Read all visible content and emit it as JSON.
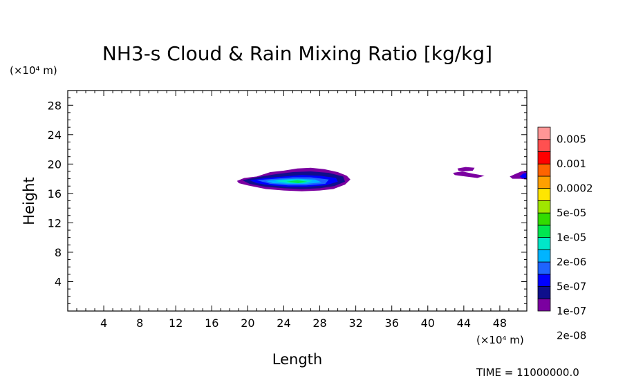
{
  "chart_data": {
    "type": "heatmap",
    "title": "NH3-s Cloud & Rain Mixing Ratio [kg/kg]",
    "xlabel": "Length",
    "ylabel": "Height",
    "x_unit": "(×10⁴ m)",
    "y_unit": "(×10⁴ m)",
    "xlim": [
      0,
      51
    ],
    "ylim": [
      0,
      30
    ],
    "x_ticks": [
      4,
      8,
      12,
      16,
      20,
      24,
      28,
      32,
      36,
      40,
      44,
      48
    ],
    "y_ticks": [
      4,
      8,
      12,
      16,
      20,
      24,
      28
    ],
    "grid": false,
    "legend_position": "right",
    "colorbar": {
      "labels": [
        "0.005",
        "0.001",
        "0.0002",
        "5e-05",
        "1e-05",
        "2e-06",
        "5e-07",
        "1e-07",
        "2e-08"
      ],
      "colors": [
        "#7b00a0",
        "#0f0f8c",
        "#0000ff",
        "#1e64ff",
        "#00b4ff",
        "#00e6c8",
        "#00e650",
        "#32dc00",
        "#a0e600",
        "#ffe600",
        "#ffa000",
        "#ff6400",
        "#ff0000",
        "#ff5050",
        "#ff9696"
      ]
    },
    "contour_regions": [
      {
        "level": 0,
        "points": [
          [
            18.8,
            17.7
          ],
          [
            19.6,
            18.1
          ],
          [
            21.0,
            18.3
          ],
          [
            22.5,
            18.9
          ],
          [
            24.0,
            19.1
          ],
          [
            25.5,
            19.4
          ],
          [
            27.0,
            19.5
          ],
          [
            28.5,
            19.3
          ],
          [
            30.0,
            18.9
          ],
          [
            31.0,
            18.4
          ],
          [
            31.4,
            17.9
          ],
          [
            30.8,
            17.2
          ],
          [
            29.5,
            16.6
          ],
          [
            28.0,
            16.4
          ],
          [
            26.0,
            16.3
          ],
          [
            24.0,
            16.4
          ],
          [
            22.0,
            16.6
          ],
          [
            20.0,
            17.1
          ],
          [
            19.0,
            17.4
          ]
        ]
      },
      {
        "level": 1,
        "points": [
          [
            19.4,
            17.8
          ],
          [
            21.0,
            18.2
          ],
          [
            23.0,
            18.6
          ],
          [
            25.0,
            18.9
          ],
          [
            27.0,
            19.0
          ],
          [
            29.0,
            18.8
          ],
          [
            30.6,
            18.3
          ],
          [
            30.8,
            17.6
          ],
          [
            29.6,
            17.0
          ],
          [
            28.0,
            16.7
          ],
          [
            26.0,
            16.6
          ],
          [
            24.0,
            16.7
          ],
          [
            22.0,
            16.9
          ],
          [
            20.2,
            17.3
          ]
        ]
      },
      {
        "level": 2,
        "points": [
          [
            20.2,
            17.8
          ],
          [
            22.0,
            18.1
          ],
          [
            24.0,
            18.3
          ],
          [
            26.0,
            18.5
          ],
          [
            28.0,
            18.4
          ],
          [
            29.8,
            18.1
          ],
          [
            30.0,
            17.6
          ],
          [
            28.6,
            17.1
          ],
          [
            26.5,
            16.9
          ],
          [
            24.5,
            16.9
          ],
          [
            22.5,
            17.1
          ],
          [
            21.0,
            17.4
          ]
        ]
      },
      {
        "level": 3,
        "points": [
          [
            21.0,
            17.8
          ],
          [
            23.0,
            18.0
          ],
          [
            25.0,
            18.2
          ],
          [
            27.0,
            18.2
          ],
          [
            29.0,
            17.9
          ],
          [
            28.6,
            17.3
          ],
          [
            26.5,
            17.1
          ],
          [
            24.5,
            17.1
          ],
          [
            22.5,
            17.3
          ]
        ]
      },
      {
        "level": 4,
        "points": [
          [
            22.0,
            17.7
          ],
          [
            23.5,
            17.9
          ],
          [
            25.5,
            18.0
          ],
          [
            27.5,
            17.9
          ],
          [
            28.2,
            17.5
          ],
          [
            26.5,
            17.3
          ],
          [
            24.5,
            17.3
          ],
          [
            22.8,
            17.4
          ]
        ]
      },
      {
        "level": 5,
        "points": [
          [
            23.0,
            17.7
          ],
          [
            24.5,
            17.9
          ],
          [
            26.0,
            17.9
          ],
          [
            27.2,
            17.7
          ],
          [
            26.2,
            17.4
          ],
          [
            24.5,
            17.4
          ]
        ]
      },
      {
        "level": 6,
        "points": [
          [
            24.3,
            17.6
          ],
          [
            25.5,
            17.8
          ],
          [
            26.6,
            17.6
          ],
          [
            25.6,
            17.4
          ]
        ]
      },
      {
        "level": 0,
        "points": [
          [
            43.3,
            19.4
          ],
          [
            44.2,
            19.6
          ],
          [
            45.2,
            19.5
          ],
          [
            45.0,
            19.1
          ],
          [
            44.0,
            19.0
          ],
          [
            43.4,
            19.1
          ]
        ]
      },
      {
        "level": 0,
        "points": [
          [
            42.8,
            18.8
          ],
          [
            43.8,
            19.0
          ],
          [
            45.0,
            18.7
          ],
          [
            46.3,
            18.4
          ],
          [
            45.5,
            18.1
          ],
          [
            44.2,
            18.3
          ],
          [
            43.0,
            18.5
          ]
        ]
      },
      {
        "level": 0,
        "points": [
          [
            49.1,
            18.3
          ],
          [
            49.8,
            18.7
          ],
          [
            50.4,
            19.0
          ],
          [
            51.0,
            19.1
          ],
          [
            51.0,
            17.9
          ],
          [
            50.3,
            18.0
          ],
          [
            49.4,
            18.0
          ]
        ]
      },
      {
        "level": 2,
        "points": [
          [
            50.2,
            18.3
          ],
          [
            50.6,
            18.7
          ],
          [
            51.0,
            18.8
          ],
          [
            51.0,
            18.0
          ],
          [
            50.5,
            18.1
          ]
        ]
      }
    ]
  },
  "footer": {
    "time_label": "TIME = 11000000.0"
  }
}
